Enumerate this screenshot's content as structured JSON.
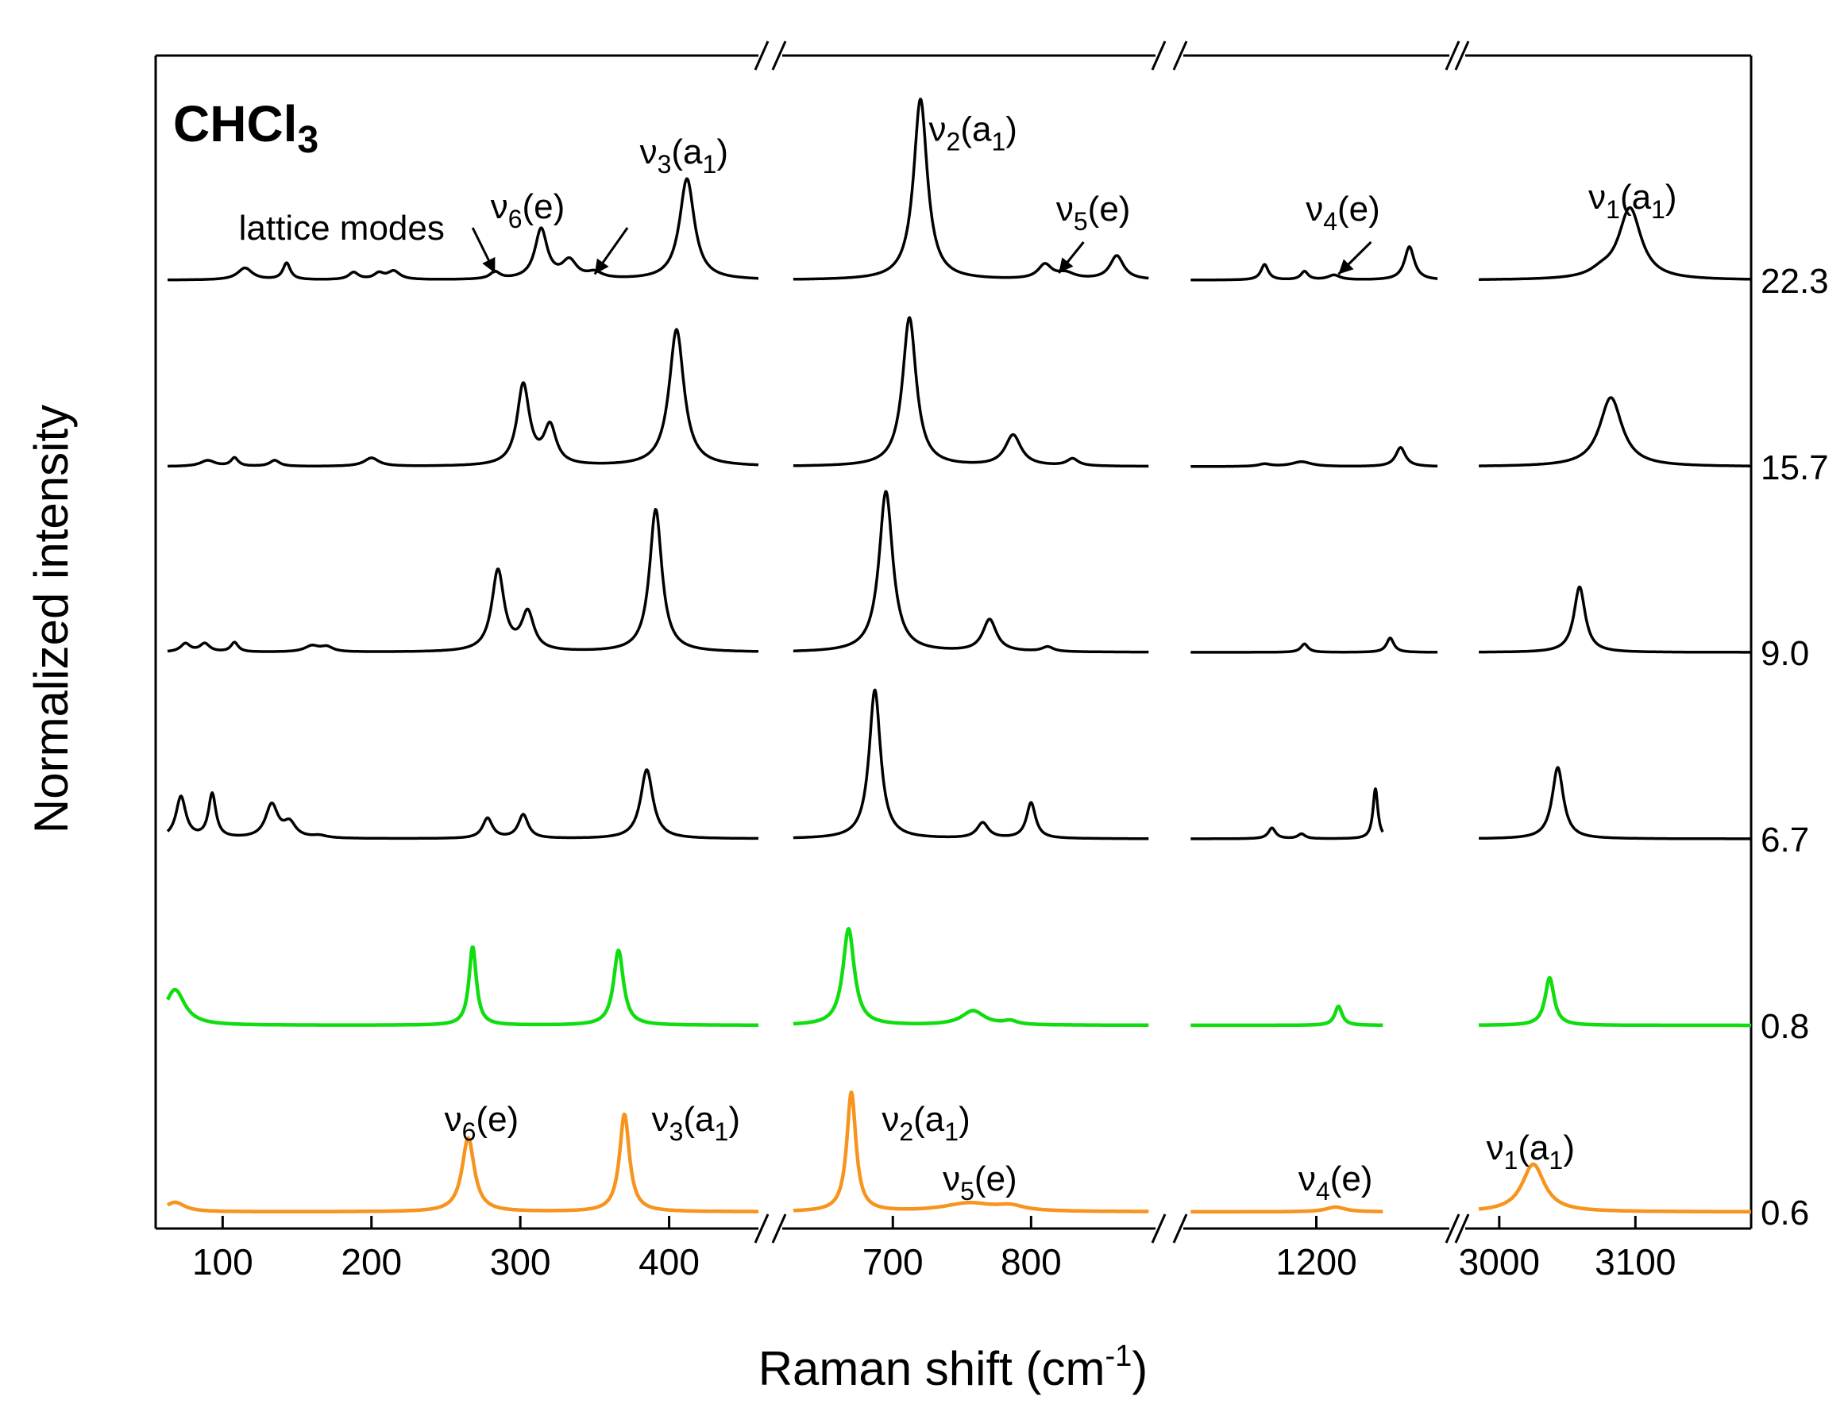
{
  "chart_data": {
    "type": "line",
    "title": "",
    "compound": {
      "base": "CHCl",
      "sub": "3"
    },
    "xlabel": {
      "text": "Raman shift (cm",
      "sup": "-1",
      "close": ")"
    },
    "ylabel": "Normalized intensity",
    "axis_breaks": true,
    "colors": {
      "black": "#000000",
      "green": "#10dd10",
      "orange": "#f7941d"
    },
    "segments": [
      {
        "id": "s1",
        "xlim": [
          55,
          460
        ],
        "ticks": [
          "100",
          "200",
          "300",
          "400"
        ],
        "tick_values": [
          100,
          200,
          300,
          400
        ]
      },
      {
        "id": "s2",
        "xlim": [
          620,
          890
        ],
        "ticks": [
          "700",
          "800"
        ],
        "tick_values": [
          700,
          800
        ]
      },
      {
        "id": "s3",
        "xlim": [
          1110,
          1290
        ],
        "ticks": [
          "1200"
        ],
        "tick_values": [
          1200
        ]
      },
      {
        "id": "s4",
        "xlim": [
          2975,
          3185
        ],
        "ticks": [
          "3000",
          "3100"
        ],
        "tick_values": [
          3000,
          3100
        ]
      }
    ],
    "series": [
      {
        "name": "22.3",
        "color": "#000000",
        "width": 3.5,
        "lw": 14,
        "extent": {
          "s1": [
            63,
            460
          ],
          "s2": [
            628,
            885
          ],
          "s3": [
            1115,
            1282
          ],
          "s4": [
            2985,
            3185
          ]
        },
        "peaks": [
          [
            115,
            0.1,
            6
          ],
          [
            143,
            0.14,
            3
          ],
          [
            188,
            0.06,
            4
          ],
          [
            205,
            0.05,
            4
          ],
          [
            215,
            0.07,
            5
          ],
          [
            283,
            0.06,
            4
          ],
          [
            314,
            0.42,
            5
          ],
          [
            333,
            0.15,
            6
          ],
          [
            350,
            0.05,
            6
          ],
          [
            412,
            0.85,
            6
          ],
          [
            720,
            1.52,
            6
          ],
          [
            810,
            0.12,
            6
          ],
          [
            825,
            0.05,
            8
          ],
          [
            862,
            0.2,
            6
          ],
          [
            1165,
            0.13,
            3
          ],
          [
            1192,
            0.07,
            3
          ],
          [
            1212,
            0.04,
            5
          ],
          [
            1263,
            0.28,
            4
          ],
          [
            3075,
            0.05,
            10
          ],
          [
            3096,
            0.6,
            10
          ]
        ]
      },
      {
        "name": "15.7",
        "color": "#000000",
        "width": 3.5,
        "lw": 14,
        "extent": {
          "s1": [
            63,
            460
          ],
          "s2": [
            628,
            885
          ],
          "s3": [
            1115,
            1282
          ],
          "s4": [
            2985,
            3185
          ]
        },
        "peaks": [
          [
            90,
            0.05,
            6
          ],
          [
            108,
            0.07,
            3
          ],
          [
            135,
            0.05,
            4
          ],
          [
            200,
            0.07,
            6
          ],
          [
            302,
            0.68,
            5
          ],
          [
            320,
            0.32,
            5
          ],
          [
            405,
            1.15,
            6
          ],
          [
            712,
            1.25,
            6
          ],
          [
            787,
            0.26,
            7
          ],
          [
            830,
            0.06,
            5
          ],
          [
            1165,
            0.02,
            5
          ],
          [
            1190,
            0.04,
            8
          ],
          [
            1257,
            0.16,
            4
          ],
          [
            3082,
            0.58,
            10
          ]
        ]
      },
      {
        "name": "9.0",
        "color": "#000000",
        "width": 3.5,
        "lw": 14,
        "extent": {
          "s1": [
            63,
            460
          ],
          "s2": [
            628,
            885
          ],
          "s3": [
            1115,
            1282
          ],
          "s4": [
            2985,
            3185
          ]
        },
        "peaks": [
          [
            75,
            0.07,
            4
          ],
          [
            88,
            0.07,
            4
          ],
          [
            108,
            0.08,
            3
          ],
          [
            160,
            0.05,
            6
          ],
          [
            170,
            0.04,
            5
          ],
          [
            285,
            0.68,
            5
          ],
          [
            305,
            0.32,
            5
          ],
          [
            391,
            1.2,
            5
          ],
          [
            695,
            1.35,
            6
          ],
          [
            770,
            0.27,
            6
          ],
          [
            812,
            0.04,
            5
          ],
          [
            1192,
            0.07,
            3
          ],
          [
            1250,
            0.12,
            3
          ],
          [
            3059,
            0.55,
            5
          ]
        ]
      },
      {
        "name": "6.7",
        "color": "#000000",
        "width": 3.5,
        "lw": 14,
        "extent": {
          "s1": [
            63,
            460
          ],
          "s2": [
            628,
            885
          ],
          "s3": [
            1115,
            1245
          ],
          "s4": [
            2985,
            3185
          ]
        },
        "peaks": [
          [
            72,
            0.35,
            4
          ],
          [
            93,
            0.37,
            3
          ],
          [
            133,
            0.28,
            5
          ],
          [
            145,
            0.12,
            5
          ],
          [
            165,
            0.02,
            6
          ],
          [
            278,
            0.17,
            4
          ],
          [
            302,
            0.2,
            4
          ],
          [
            385,
            0.58,
            5
          ],
          [
            687,
            1.25,
            5
          ],
          [
            765,
            0.13,
            5
          ],
          [
            800,
            0.3,
            4
          ],
          [
            1170,
            0.09,
            3
          ],
          [
            1190,
            0.04,
            3
          ],
          [
            1240,
            0.42,
            2
          ],
          [
            3043,
            0.6,
            5
          ]
        ]
      },
      {
        "name": "0.8",
        "color": "#10dd10",
        "width": 4.5,
        "lw": 14,
        "extent": {
          "s1": [
            63,
            460
          ],
          "s2": [
            628,
            885
          ],
          "s3": [
            1115,
            1245
          ],
          "s4": [
            2985,
            3185
          ]
        },
        "peaks": [
          [
            68,
            0.3,
            8
          ],
          [
            268,
            0.66,
            3
          ],
          [
            366,
            0.63,
            4
          ],
          [
            668,
            0.81,
            5
          ],
          [
            758,
            0.12,
            10
          ],
          [
            785,
            0.03,
            6
          ],
          [
            1215,
            0.16,
            3
          ],
          [
            3037,
            0.4,
            4
          ]
        ]
      },
      {
        "name": "0.6",
        "color": "#f7941d",
        "width": 4.5,
        "lw": 14,
        "extent": {
          "s1": [
            63,
            460
          ],
          "s2": [
            628,
            885
          ],
          "s3": [
            1115,
            1245
          ],
          "s4": [
            2985,
            3185
          ]
        },
        "peaks": [
          [
            68,
            0.08,
            8
          ],
          [
            265,
            0.62,
            5
          ],
          [
            370,
            0.82,
            4
          ],
          [
            670,
            1.0,
            4
          ],
          [
            755,
            0.07,
            22
          ],
          [
            785,
            0.04,
            12
          ],
          [
            1213,
            0.04,
            8
          ],
          [
            3025,
            0.4,
            10
          ]
        ]
      }
    ],
    "annotations": [
      {
        "text": "lattice modes",
        "seg": "s1",
        "x": 180,
        "series": "22.3",
        "dy": 0.34
      },
      {
        "base": "ν",
        "sub": "6",
        "rest": "(e)",
        "seg": "s1",
        "x": 305,
        "series": "22.3",
        "dy": 0.52
      },
      {
        "base": "ν",
        "sub": "3",
        "rest": "(a",
        "sub2": "1",
        "close": ")",
        "seg": "s1",
        "x": 410,
        "series": "22.3",
        "dy": 0.98
      },
      {
        "base": "ν",
        "sub": "2",
        "rest": "(a",
        "sub2": "1",
        "close": ")",
        "seg": "s2",
        "x": 758,
        "series": "22.3",
        "dy": 1.17
      },
      {
        "base": "ν",
        "sub": "5",
        "rest": "(e)",
        "seg": "s2",
        "x": 845,
        "series": "22.3",
        "dy": 0.5
      },
      {
        "base": "ν",
        "sub": "4",
        "rest": "(e)",
        "seg": "s3",
        "x": 1218,
        "series": "22.3",
        "dy": 0.5
      },
      {
        "base": "ν",
        "sub": "1",
        "rest": "(a",
        "sub2": "1",
        "close": ")",
        "seg": "s4",
        "x": 3098,
        "series": "22.3",
        "dy": 0.6
      },
      {
        "base": "ν",
        "sub": "6",
        "rest": "(e)",
        "seg": "s1",
        "x": 274,
        "series": "0.6",
        "dy": 0.68
      },
      {
        "base": "ν",
        "sub": "3",
        "rest": "(a",
        "sub2": "1",
        "close": ")",
        "seg": "s1",
        "x": 418,
        "series": "0.6",
        "dy": 0.68
      },
      {
        "base": "ν",
        "sub": "2",
        "rest": "(a",
        "sub2": "1",
        "close": ")",
        "seg": "s2",
        "x": 724,
        "series": "0.6",
        "dy": 0.68
      },
      {
        "base": "ν",
        "sub": "5",
        "rest": "(e)",
        "seg": "s2",
        "x": 763,
        "series": "0.6",
        "dy": 0.18
      },
      {
        "base": "ν",
        "sub": "4",
        "rest": "(e)",
        "seg": "s3",
        "x": 1213,
        "series": "0.6",
        "dy": 0.18
      },
      {
        "base": "ν",
        "sub": "1",
        "rest": "(a",
        "sub2": "1",
        "close": ")",
        "seg": "s4",
        "x": 3023,
        "series": "0.6",
        "dy": 0.44
      }
    ],
    "arrows": [
      {
        "seg": "s1",
        "x0": 268,
        "y0": 0.44,
        "x1": 283,
        "y1": 0.06,
        "series": "22.3"
      },
      {
        "seg": "s1",
        "x0": 372,
        "y0": 0.44,
        "x1": 350,
        "y1": 0.05,
        "series": "22.3"
      },
      {
        "seg": "s2",
        "x0": 838,
        "y0": 0.32,
        "x1": 820,
        "y1": 0.06,
        "series": "22.3"
      },
      {
        "seg": "s3",
        "x0": 1237,
        "y0": 0.32,
        "x1": 1215,
        "y1": 0.05,
        "series": "22.3"
      }
    ]
  }
}
